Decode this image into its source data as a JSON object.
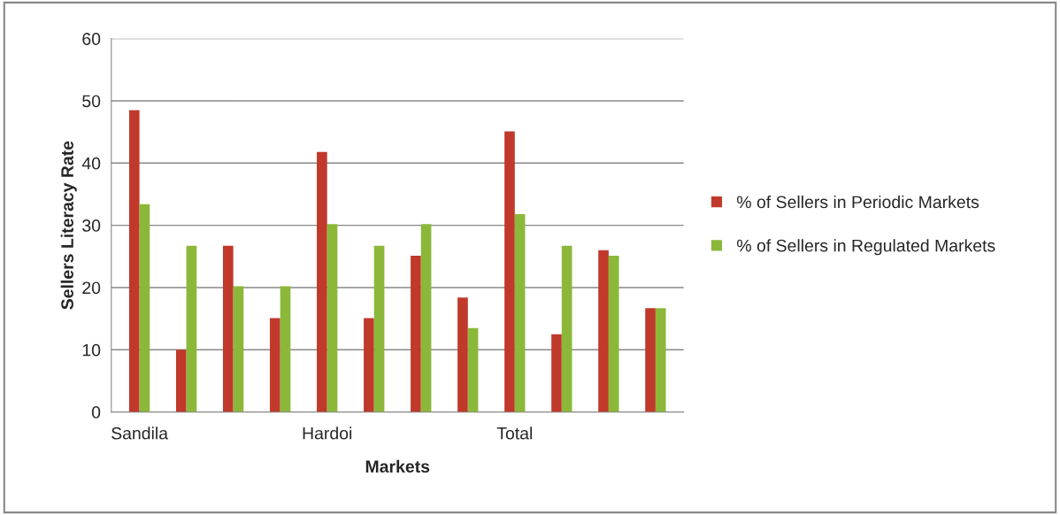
{
  "chart_data": {
    "type": "bar",
    "xlabel": "Markets",
    "ylabel": "Sellers Literacy Rate",
    "categories": [
      "Sandila",
      null,
      null,
      null,
      "Hardoi",
      null,
      null,
      null,
      "Total",
      null,
      null,
      null
    ],
    "series": [
      {
        "name": "% of Sellers in Periodic Markets",
        "color": "#c0392b",
        "values": [
          48.5,
          10.0,
          26.7,
          15.1,
          41.8,
          15.1,
          25.1,
          18.4,
          45.1,
          12.5,
          26.0,
          16.7
        ]
      },
      {
        "name": "% of Sellers in Regulated Markets",
        "color": "#8cb83a",
        "values": [
          33.4,
          26.7,
          20.2,
          20.2,
          30.2,
          26.7,
          30.2,
          13.5,
          31.8,
          26.7,
          25.1,
          16.7
        ]
      }
    ],
    "ylim": [
      0,
      60
    ],
    "yticks": [
      0,
      10,
      20,
      30,
      40,
      50,
      60
    ],
    "grid": "y",
    "legend": "right"
  }
}
